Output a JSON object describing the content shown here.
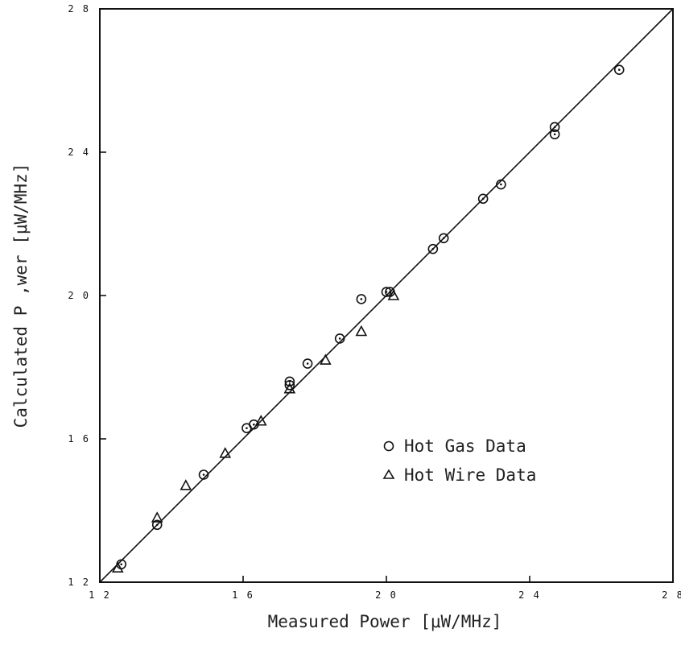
{
  "chart_data": {
    "type": "scatter",
    "xlabel": "Measured Power [μW/MHz]",
    "ylabel": "Calculated P ,wer [μW/MHz]",
    "xlim": [
      12,
      28
    ],
    "ylim": [
      12,
      28
    ],
    "x_ticks": [
      12,
      16,
      20,
      24,
      28
    ],
    "y_ticks": [
      12,
      16,
      20,
      24,
      28
    ],
    "x_tick_labels": [
      "1 2",
      "1 6",
      "2 0",
      "2 4",
      "2 8"
    ],
    "y_tick_labels": [
      "1 2",
      "1 6",
      "2 0",
      "2 4",
      "2 8"
    ],
    "grid": false,
    "legend_position": "lower-right",
    "line": {
      "x": [
        12,
        28
      ],
      "y": [
        12,
        28
      ]
    },
    "series": [
      {
        "name": "Hot Gas Data",
        "marker": "circle",
        "x": [
          12.6,
          13.6,
          14.9,
          16.1,
          16.3,
          17.3,
          17.3,
          17.8,
          18.7,
          19.3,
          20.0,
          20.1,
          21.3,
          21.6,
          22.7,
          23.2,
          24.7,
          24.7,
          26.5
        ],
        "y": [
          12.5,
          13.6,
          15.0,
          16.3,
          16.4,
          17.5,
          17.6,
          18.1,
          18.8,
          19.9,
          20.1,
          20.1,
          21.3,
          21.6,
          22.7,
          23.1,
          24.7,
          24.5,
          26.3
        ]
      },
      {
        "name": "Hot Wire Data",
        "marker": "triangle",
        "x": [
          12.5,
          13.6,
          14.4,
          15.5,
          16.5,
          17.3,
          18.3,
          19.3,
          20.2
        ],
        "y": [
          12.4,
          13.8,
          14.7,
          15.6,
          16.5,
          17.4,
          18.2,
          19.0,
          20.0
        ]
      }
    ]
  }
}
